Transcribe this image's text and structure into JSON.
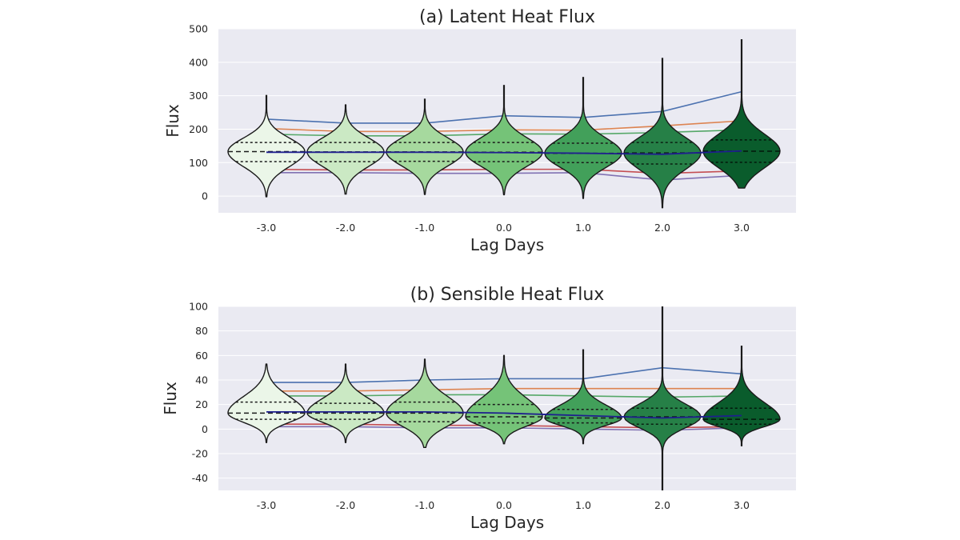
{
  "chart_data": [
    {
      "type": "violin",
      "title": "(a) Latent Heat Flux",
      "xlabel": "Lag Days",
      "ylabel": "Flux",
      "categories": [
        "-3.0",
        "-2.0",
        "-1.0",
        "0.0",
        "1.0",
        "2.0",
        "3.0"
      ],
      "yticks": [
        "0",
        "100",
        "200",
        "300",
        "400",
        "500"
      ],
      "ylim": [
        -50,
        500
      ],
      "grid": true,
      "violin_colors": [
        "#ebf6e8",
        "#cbe9c4",
        "#a6d99e",
        "#75c378",
        "#42a05a",
        "#268047",
        "#0a5c2c"
      ],
      "violins": [
        {
          "min": -2,
          "q1": 103,
          "median": 133,
          "q3": 160,
          "max": 302
        },
        {
          "min": 6,
          "q1": 103,
          "median": 132,
          "q3": 160,
          "max": 273
        },
        {
          "min": 5,
          "q1": 104,
          "median": 132,
          "q3": 160,
          "max": 291
        },
        {
          "min": 4,
          "q1": 103,
          "median": 131,
          "q3": 160,
          "max": 332
        },
        {
          "min": -7,
          "q1": 100,
          "median": 128,
          "q3": 158,
          "max": 356
        },
        {
          "min": -35,
          "q1": 96,
          "median": 129,
          "q3": 160,
          "max": 413
        },
        {
          "min": 24,
          "q1": 101,
          "median": 134,
          "q3": 168,
          "max": 469
        }
      ],
      "series": [
        {
          "color": "#4c72b0",
          "values": [
            230,
            218,
            218,
            240,
            235,
            253,
            312
          ]
        },
        {
          "color": "#dd8452",
          "values": [
            202,
            193,
            193,
            198,
            197,
            210,
            225
          ]
        },
        {
          "color": "#55a868",
          "values": [
            185,
            180,
            180,
            186,
            185,
            190,
            198
          ]
        },
        {
          "color": "#1f1f8f",
          "values": [
            131,
            131,
            131,
            130,
            128,
            125,
            135
          ]
        },
        {
          "color": "#c44e52",
          "values": [
            80,
            78,
            78,
            80,
            80,
            68,
            75
          ]
        },
        {
          "color": "#8172b3",
          "values": [
            70,
            70,
            68,
            68,
            70,
            48,
            62
          ]
        }
      ]
    },
    {
      "type": "violin",
      "title": "(b) Sensible Heat Flux",
      "xlabel": "Lag Days",
      "ylabel": "Flux",
      "categories": [
        "-3.0",
        "-2.0",
        "-1.0",
        "0.0",
        "1.0",
        "2.0",
        "3.0"
      ],
      "yticks": [
        "-40",
        "-20",
        "0",
        "20",
        "40",
        "60",
        "80",
        "100"
      ],
      "ylim": [
        -50,
        100
      ],
      "grid": true,
      "violin_colors": [
        "#ebf6e8",
        "#cbe9c4",
        "#a6d99e",
        "#75c378",
        "#42a05a",
        "#268047",
        "#0a5c2c"
      ],
      "violins": [
        {
          "min": -11,
          "q1": 8,
          "median": 13,
          "q3": 22,
          "max": 53
        },
        {
          "min": -11,
          "q1": 8,
          "median": 13,
          "q3": 21,
          "max": 53
        },
        {
          "min": -15,
          "q1": 6,
          "median": 13,
          "q3": 22,
          "max": 57
        },
        {
          "min": -12,
          "q1": 5,
          "median": 10,
          "q3": 20,
          "max": 60
        },
        {
          "min": -12,
          "q1": 5,
          "median": 9,
          "q3": 16,
          "max": 65
        },
        {
          "min": -50,
          "q1": 4,
          "median": 10,
          "q3": 17,
          "max": 100
        },
        {
          "min": -14,
          "q1": 4,
          "median": 8,
          "q3": 17,
          "max": 68
        }
      ],
      "series": [
        {
          "color": "#4c72b0",
          "values": [
            38,
            38,
            40,
            41,
            41,
            50,
            45
          ]
        },
        {
          "color": "#dd8452",
          "values": [
            31,
            31,
            32,
            33,
            33,
            33,
            33
          ]
        },
        {
          "color": "#55a868",
          "values": [
            27,
            27,
            28,
            28,
            27,
            26,
            27
          ]
        },
        {
          "color": "#1f1f8f",
          "values": [
            14,
            14,
            14,
            13,
            11,
            9,
            11
          ]
        },
        {
          "color": "#c44e52",
          "values": [
            4,
            4,
            3,
            3,
            2,
            1,
            2
          ]
        },
        {
          "color": "#8172b3",
          "values": [
            2,
            2,
            1,
            1,
            0,
            -1,
            1
          ]
        }
      ]
    }
  ]
}
